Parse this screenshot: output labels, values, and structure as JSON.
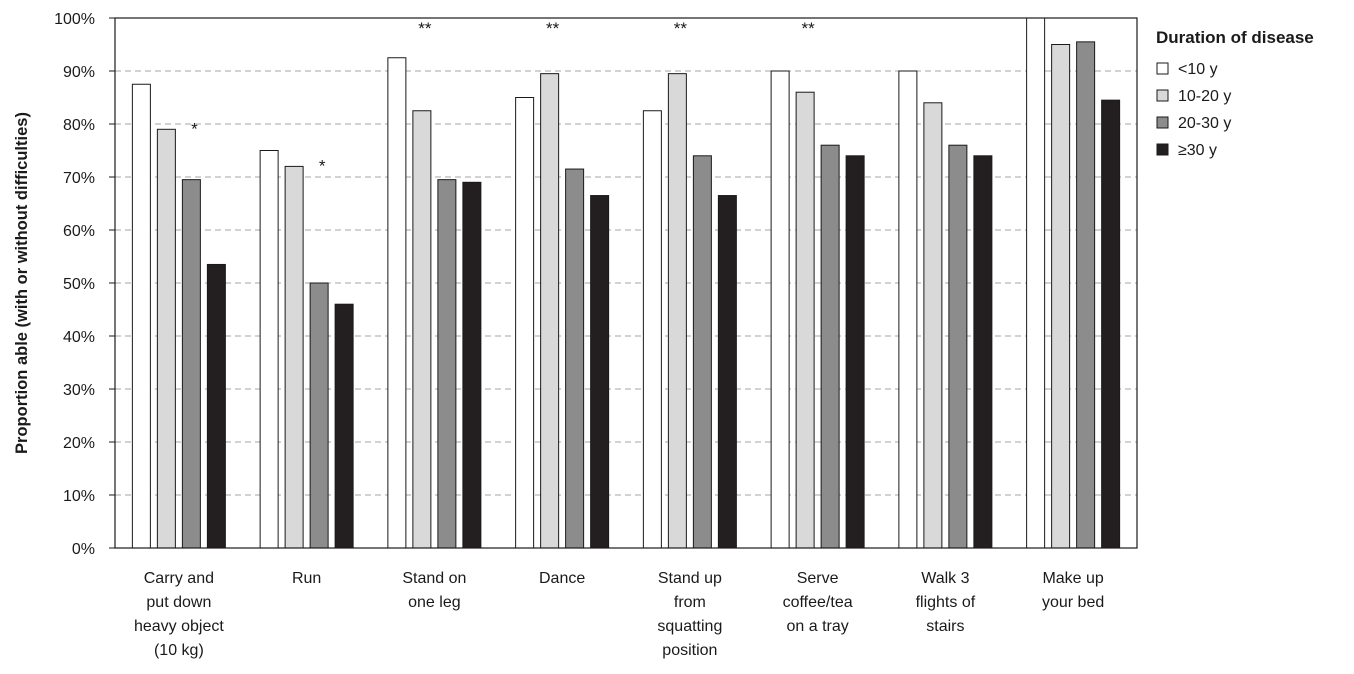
{
  "chart_data": {
    "type": "bar",
    "ylabel": "Proportion able (with or without difficulties)",
    "xlabel": "",
    "ylim": [
      0,
      100
    ],
    "y_ticks": [
      "0%",
      "10%",
      "20%",
      "30%",
      "40%",
      "50%",
      "60%",
      "70%",
      "80%",
      "90%",
      "100%"
    ],
    "grid": "horizontal dashed",
    "categories": [
      [
        "Carry and",
        "put down",
        "heavy object",
        "(10 kg)"
      ],
      [
        "Run"
      ],
      [
        "Stand on",
        "one leg"
      ],
      [
        "Dance"
      ],
      [
        "Stand up",
        "from",
        "squatting",
        "position"
      ],
      [
        "Serve",
        "coffee/tea",
        "on a tray"
      ],
      [
        "Walk 3",
        "flights of",
        "stairs"
      ],
      [
        "Make up",
        "your bed"
      ]
    ],
    "series": [
      {
        "name": "<10 y",
        "color": "#ffffff",
        "values": [
          87.5,
          75,
          92.5,
          85,
          82.5,
          90,
          90,
          100
        ]
      },
      {
        "name": "10-20 y",
        "color": "#d9d9d9",
        "values": [
          79,
          72,
          82.5,
          89.5,
          89.5,
          86,
          84,
          95
        ]
      },
      {
        "name": "20-30 y",
        "color": "#8c8c8c",
        "values": [
          69.5,
          50,
          69.5,
          71.5,
          74,
          76,
          76,
          95.5
        ]
      },
      {
        "name": "≥30 y",
        "color": "#231f20",
        "values": [
          53.5,
          46,
          69,
          66.5,
          66.5,
          74,
          74,
          84.5
        ]
      }
    ],
    "annotations": [
      "*",
      "*",
      "**",
      "**",
      "**",
      "**",
      "",
      ""
    ],
    "legend": {
      "title": "Duration of disease",
      "placement": "right"
    }
  }
}
